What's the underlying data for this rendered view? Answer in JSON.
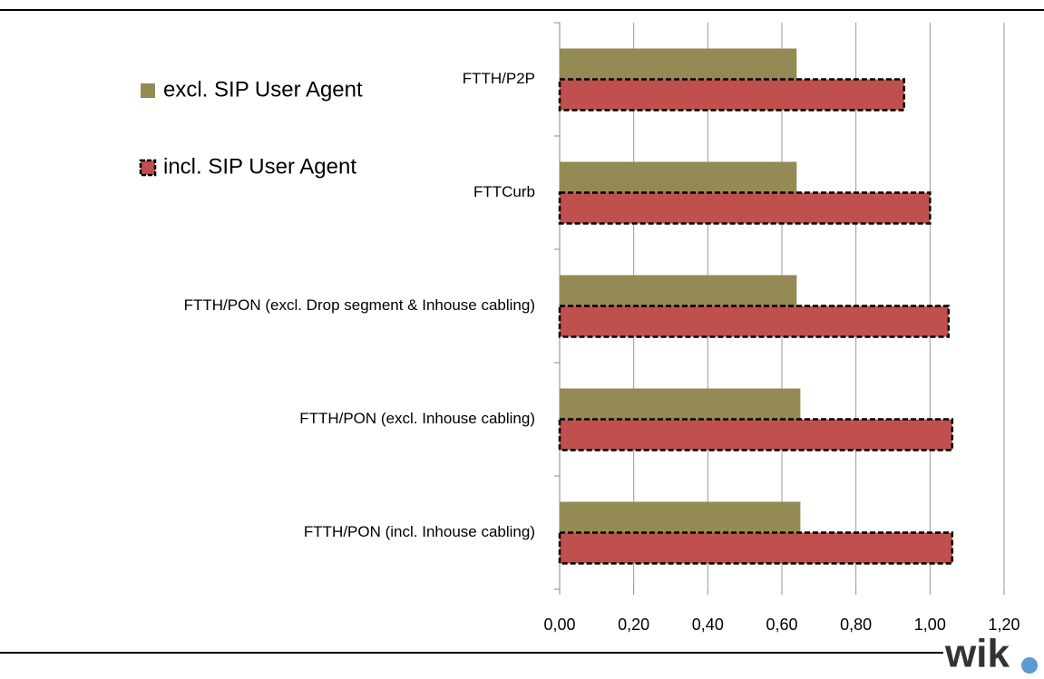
{
  "chart_data": {
    "type": "hbar",
    "categories": [
      "FTTH/P2P",
      "FTTCurb",
      "FTTH/PON (excl. Drop segment & Inhouse cabling)",
      "FTTH/PON (excl. Inhouse cabling)",
      "FTTH/PON (incl. Inhouse cabling)"
    ],
    "series": [
      {
        "name": "excl. SIP User Agent",
        "color": "#948a54",
        "values": [
          0.64,
          0.64,
          0.64,
          0.65,
          0.65
        ]
      },
      {
        "name": "incl. SIP User Agent",
        "color": "#c0504d",
        "values": [
          0.93,
          1.0,
          1.05,
          1.06,
          1.06
        ]
      }
    ],
    "xlim": [
      0,
      1.2
    ],
    "xticks": [
      {
        "value": 0,
        "label": "0,00"
      },
      {
        "value": 0.2,
        "label": "0,20"
      },
      {
        "value": 0.4,
        "label": "0,40"
      },
      {
        "value": 0.6,
        "label": "0,60"
      },
      {
        "value": 0.8,
        "label": "0,80"
      },
      {
        "value": 1.0,
        "label": "1,00"
      },
      {
        "value": 1.2,
        "label": "1,20"
      }
    ],
    "grid": true,
    "brand": "wik"
  }
}
